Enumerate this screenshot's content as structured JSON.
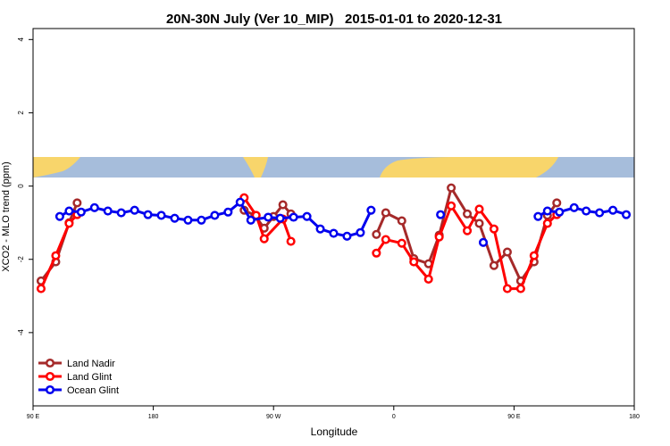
{
  "chart_data": {
    "type": "line",
    "title": "20N-30N July (Ver 10_MIP)   2015-01-01 to 2020-12-31",
    "xlabel": "Longitude",
    "ylabel": "XCO2 - MLO trend (ppm)",
    "xlim": [
      90,
      540
    ],
    "xticks": [
      {
        "value": 90,
        "label": "90 E"
      },
      180,
      {
        "value": 270,
        "label": "90 W"
      },
      {
        "value": 360,
        "label": "0"
      },
      {
        "value": 450,
        "label": "90 E"
      },
      {
        "value": 540,
        "label": "180"
      }
    ],
    "ylim": [
      -6,
      4.3
    ],
    "yticks": [
      -4,
      -2,
      0,
      2,
      4
    ],
    "legend": "bottom-left",
    "series": [
      {
        "name": "Land Nadir",
        "color": "#a52a2a",
        "x": [
          96,
          107,
          117,
          123,
          null,
          248,
          256,
          263,
          270,
          277,
          283,
          null,
          347,
          354,
          366,
          375,
          386,
          394,
          403,
          415,
          424,
          435,
          445,
          455,
          465,
          475,
          482
        ],
        "values": [
          -2.59,
          -2.07,
          -1.0,
          -0.46,
          null,
          -0.66,
          -0.8,
          -1.15,
          -0.83,
          -0.51,
          -0.76,
          null,
          -1.32,
          -0.73,
          -0.95,
          -1.98,
          -2.12,
          -1.34,
          -0.05,
          -0.76,
          -1.02,
          -2.17,
          -1.8,
          -2.59,
          -2.07,
          -0.8,
          -0.46
        ]
      },
      {
        "name": "Land Glint",
        "color": "#ff0000",
        "x": [
          96,
          107,
          117,
          123,
          null,
          248,
          257,
          263,
          277,
          283,
          null,
          347,
          354,
          366,
          375,
          386,
          394,
          403,
          415,
          424,
          435,
          445,
          455,
          465,
          475,
          482
        ],
        "values": [
          -2.8,
          -1.9,
          -1.02,
          -0.78,
          null,
          -0.32,
          -0.8,
          -1.44,
          -0.9,
          -1.51,
          null,
          -1.83,
          -1.46,
          -1.56,
          -2.07,
          -2.54,
          -1.39,
          -0.54,
          -1.22,
          -0.63,
          -1.17,
          -2.8,
          -2.8,
          -1.9,
          -1.02,
          -0.78
        ]
      },
      {
        "name": "Ocean Glint",
        "color": "#0000ee",
        "x": [
          110,
          117,
          126,
          136,
          146,
          156,
          166,
          176,
          186,
          196,
          206,
          216,
          226,
          236,
          245,
          253,
          266,
          275,
          285,
          295,
          305,
          315,
          325,
          335,
          343,
          null,
          395,
          null,
          427,
          null,
          468,
          475,
          484,
          495,
          504,
          514,
          524,
          534
        ],
        "values": [
          -0.83,
          -0.68,
          -0.71,
          -0.59,
          -0.68,
          -0.73,
          -0.66,
          -0.78,
          -0.8,
          -0.88,
          -0.93,
          -0.93,
          -0.8,
          -0.71,
          -0.44,
          -0.93,
          -0.85,
          -0.88,
          -0.85,
          -0.83,
          -1.17,
          -1.29,
          -1.37,
          -1.27,
          -0.66,
          null,
          -0.78,
          null,
          -1.54,
          null,
          -0.83,
          -0.68,
          -0.71,
          -0.59,
          -0.68,
          -0.73,
          -0.66,
          -0.78
        ]
      }
    ]
  }
}
